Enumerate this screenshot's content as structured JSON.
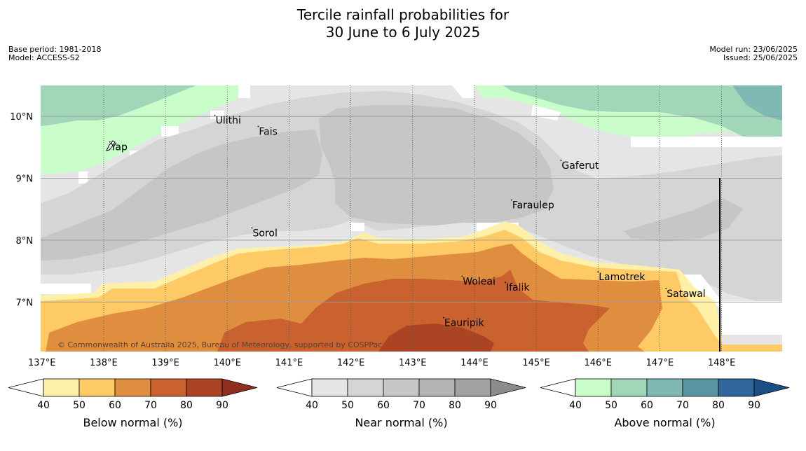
{
  "title": {
    "line1": "Tercile rainfall probabilities for",
    "line2": "30 June to 6 July 2025"
  },
  "meta_left": {
    "base_period": "Base period: 1981-2018",
    "model": "Model: ACCESS-S2"
  },
  "meta_right": {
    "model_run": "Model run: 23/06/2025",
    "issued": "Issued: 25/06/2025"
  },
  "copyright": "© Commonwealth of Australia 2025, Bureau of Meteorology, supported by COSPPac",
  "map": {
    "lon_labels": [
      "137°E",
      "138°E",
      "139°E",
      "140°E",
      "141°E",
      "142°E",
      "143°E",
      "144°E",
      "145°E",
      "146°E",
      "147°E",
      "148°E"
    ],
    "lat_labels": [
      "10°N",
      "9°N",
      "8°N",
      "7°N"
    ],
    "places": [
      {
        "name": "Ulithi",
        "lon": 139.8,
        "lat": 9.95
      },
      {
        "name": "Fais",
        "lon": 140.5,
        "lat": 9.77
      },
      {
        "name": "Yap",
        "lon": 138.1,
        "lat": 9.52
      },
      {
        "name": "Gaferut",
        "lon": 145.4,
        "lat": 9.22
      },
      {
        "name": "Faraulep",
        "lon": 144.6,
        "lat": 8.58
      },
      {
        "name": "Sorol",
        "lon": 140.4,
        "lat": 8.13
      },
      {
        "name": "Lamotrek",
        "lon": 146.0,
        "lat": 7.42
      },
      {
        "name": "Woleai",
        "lon": 143.8,
        "lat": 7.35
      },
      {
        "name": "Ifalik",
        "lon": 144.5,
        "lat": 7.25
      },
      {
        "name": "Satawal",
        "lon": 147.1,
        "lat": 7.15
      },
      {
        "name": "Eauripik",
        "lon": 143.5,
        "lat": 6.68
      }
    ]
  },
  "colorbars": [
    {
      "title": "Below normal (%)",
      "ticks": [
        "40",
        "50",
        "60",
        "70",
        "80",
        "90"
      ],
      "colors": [
        "#fff0a8",
        "#fdca65",
        "#df8e40",
        "#c9622f",
        "#aa4424",
        "#8f2f1d"
      ]
    },
    {
      "title": "Near normal (%)",
      "ticks": [
        "40",
        "50",
        "60",
        "70",
        "80",
        "90"
      ],
      "colors": [
        "#e5e5e5",
        "#d5d5d5",
        "#c6c6c6",
        "#b4b4b4",
        "#a2a2a2",
        "#8c8c8c"
      ]
    },
    {
      "title": "Above normal (%)",
      "ticks": [
        "40",
        "50",
        "60",
        "70",
        "80",
        "90"
      ],
      "colors": [
        "#c9fdca",
        "#a1d6b9",
        "#7fb9b3",
        "#5b95a2",
        "#31669a",
        "#1a4e85"
      ]
    }
  ],
  "colors": {
    "white": "#ffffff",
    "grid": "#888888"
  }
}
